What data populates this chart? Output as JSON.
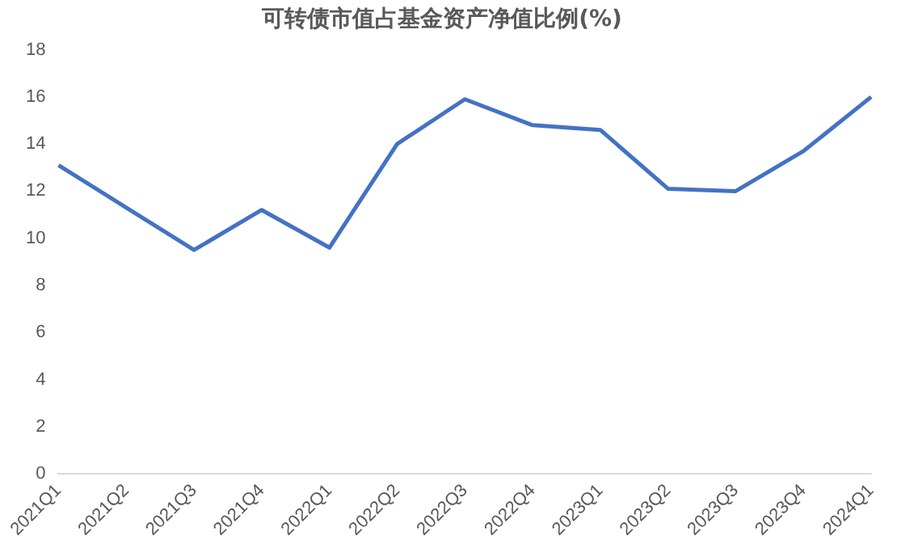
{
  "chart_data": {
    "type": "line",
    "title": "可转债市值占基金资产净值比例(%)",
    "categories": [
      "2021Q1",
      "2021Q2",
      "2021Q3",
      "2021Q4",
      "2022Q1",
      "2022Q2",
      "2022Q3",
      "2022Q4",
      "2023Q1",
      "2023Q2",
      "2023Q3",
      "2023Q4",
      "2024Q1"
    ],
    "series": [
      {
        "color": "#4472c4",
        "values": [
          13.1,
          11.3,
          9.5,
          11.2,
          9.6,
          14.0,
          15.9,
          14.8,
          14.6,
          12.1,
          12.0,
          13.7,
          16.0
        ]
      }
    ],
    "ylim": [
      0,
      18
    ],
    "yticks": [
      0,
      2,
      4,
      6,
      8,
      10,
      12,
      14,
      16,
      18
    ],
    "grid": false,
    "legend": false,
    "marker": "none",
    "line_style": "solid"
  }
}
